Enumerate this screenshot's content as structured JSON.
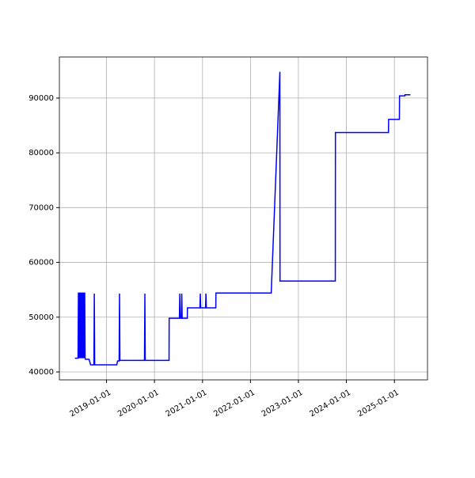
{
  "chart_data": {
    "type": "line",
    "x": [
      "2018-05-05",
      "2018-05-29",
      "2018-06-01",
      "2018-06-04",
      "2018-06-07",
      "2018-06-10",
      "2018-06-13",
      "2018-06-16",
      "2018-06-19",
      "2018-06-22",
      "2018-06-25",
      "2018-06-28",
      "2018-07-01",
      "2018-07-04",
      "2018-07-07",
      "2018-07-10",
      "2018-07-13",
      "2018-07-16",
      "2018-07-19",
      "2018-07-22",
      "2018-07-25",
      "2018-08-21",
      "2018-09-02",
      "2018-09-27",
      "2018-09-30",
      "2018-10-03",
      "2019-03-20",
      "2019-03-26",
      "2019-04-07",
      "2019-04-10",
      "2019-04-13",
      "2019-10-17",
      "2019-10-20",
      "2019-10-23",
      "2020-04-21",
      "2020-04-22",
      "2020-07-09",
      "2020-07-12",
      "2020-07-15",
      "2020-07-24",
      "2020-07-27",
      "2020-07-30",
      "2020-09-07",
      "2020-09-08",
      "2020-12-12",
      "2020-12-15",
      "2020-12-18",
      "2021-01-24",
      "2021-01-27",
      "2021-01-30",
      "2021-04-12",
      "2021-04-13",
      "2022-06-08",
      "2022-08-13",
      "2022-08-14",
      "2023-10-09",
      "2023-10-10",
      "2024-11-17",
      "2024-11-18",
      "2025-02-08",
      "2025-02-09",
      "2025-03-22",
      "2025-03-23",
      "2025-05-03"
    ],
    "series": [
      {
        "color": "#0000ff",
        "values": [
          42500,
          42500,
          54500,
          42500,
          54500,
          42500,
          54500,
          42500,
          54500,
          42500,
          54500,
          42500,
          54500,
          42500,
          54500,
          42500,
          54500,
          42500,
          54500,
          42500,
          42300,
          42300,
          41300,
          41300,
          54300,
          41300,
          41300,
          42000,
          42000,
          54300,
          42100,
          42100,
          54300,
          42100,
          42100,
          49800,
          49800,
          54300,
          49800,
          49800,
          54300,
          49800,
          49800,
          51700,
          51700,
          54300,
          51700,
          51700,
          54300,
          51700,
          51700,
          54400,
          54400,
          94800,
          56600,
          56600,
          83700,
          83700,
          86100,
          86100,
          90400,
          90400,
          90600,
          90600
        ]
      }
    ],
    "xlim": [
      "2018-01-07",
      "2025-09-10"
    ],
    "xticks": [
      "2019-01-01",
      "2020-01-01",
      "2021-01-01",
      "2022-01-01",
      "2023-01-01",
      "2024-01-01",
      "2025-01-01"
    ],
    "ylim": [
      38550,
      97500
    ],
    "yticks": [
      40000,
      50000,
      60000,
      70000,
      80000,
      90000
    ],
    "grid": true
  }
}
